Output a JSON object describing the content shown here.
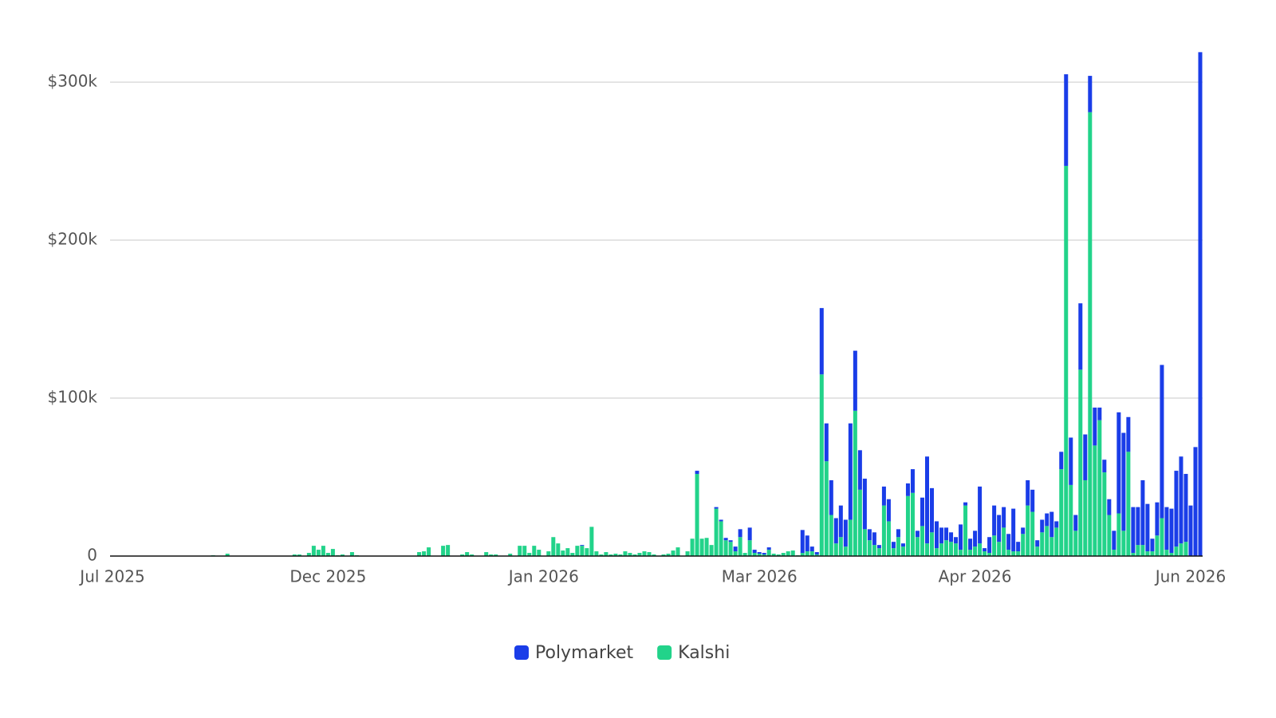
{
  "chart_data": {
    "type": "stacked-bar",
    "categories": [
      "Jul 2025",
      null,
      null,
      null,
      null,
      null,
      null,
      null,
      null,
      null,
      null,
      null,
      null,
      null,
      null,
      null,
      null,
      null,
      null,
      null,
      null,
      null,
      null,
      null,
      null,
      null,
      null,
      null,
      null,
      null,
      null,
      null,
      null,
      null,
      null,
      null,
      null,
      null,
      null,
      null,
      null,
      null,
      null,
      null,
      null,
      "Dec 2025",
      null,
      null,
      null,
      null,
      null,
      null,
      null,
      null,
      null,
      null,
      null,
      null,
      null,
      null,
      null,
      null,
      null,
      null,
      null,
      null,
      null,
      null,
      null,
      null,
      null,
      null,
      null,
      null,
      null,
      null,
      null,
      null,
      null,
      null,
      null,
      null,
      null,
      null,
      null,
      null,
      null,
      null,
      null,
      null,
      "Jan 2026",
      null,
      null,
      null,
      null,
      null,
      null,
      null,
      null,
      null,
      null,
      null,
      null,
      null,
      null,
      null,
      null,
      null,
      null,
      null,
      null,
      null,
      null,
      null,
      null,
      null,
      null,
      null,
      null,
      null,
      null,
      null,
      null,
      null,
      null,
      null,
      null,
      null,
      null,
      null,
      null,
      null,
      null,
      null,
      null,
      "Mar 2026",
      null,
      null,
      null,
      null,
      null,
      null,
      null,
      null,
      null,
      null,
      null,
      null,
      null,
      null,
      null,
      null,
      null,
      null,
      null,
      null,
      null,
      null,
      null,
      null,
      null,
      null,
      null,
      null,
      null,
      null,
      null,
      null,
      null,
      null,
      null,
      null,
      null,
      null,
      null,
      null,
      null,
      null,
      null,
      null,
      "Apr 2026",
      null,
      null,
      null,
      null,
      null,
      null,
      null,
      null,
      null,
      null,
      null,
      null,
      null,
      null,
      null,
      null,
      null,
      null,
      null,
      null,
      null,
      null,
      null,
      null,
      null,
      null,
      null,
      null,
      null,
      null,
      null,
      null,
      null,
      null,
      null,
      null,
      null,
      null,
      null,
      null,
      null,
      null,
      null,
      null,
      "Jun 2026",
      null,
      null
    ],
    "series": [
      {
        "name": "Polymarket",
        "color": "#1a3de8",
        "values": [
          0,
          0,
          0,
          0,
          0,
          0,
          0,
          0,
          0,
          0,
          0,
          0,
          0,
          0,
          0,
          0,
          0,
          0,
          0,
          0,
          0,
          0,
          0,
          0,
          0,
          0,
          0,
          0,
          0,
          0,
          0,
          0,
          0,
          0,
          0,
          0,
          0,
          0,
          0,
          0,
          0,
          0,
          0,
          0,
          0,
          0,
          0,
          0,
          0,
          0,
          0,
          0,
          0,
          0,
          0,
          0,
          0,
          0,
          0,
          0,
          0,
          0,
          0,
          0,
          0,
          0,
          0,
          0,
          0,
          0,
          0,
          0,
          0,
          0,
          0,
          0,
          0,
          0,
          0,
          0,
          0,
          0,
          0,
          0,
          0,
          0,
          0,
          0,
          0,
          0,
          0,
          0,
          0,
          0,
          0,
          0,
          0,
          0,
          500,
          0,
          0,
          0,
          0,
          0,
          0,
          0,
          0,
          0,
          0,
          0,
          0,
          0,
          0,
          0,
          0,
          0,
          0,
          0,
          0,
          0,
          0,
          0,
          2000,
          0,
          0,
          0,
          1000,
          1000,
          1500,
          1000,
          3000,
          5000,
          0,
          8000,
          2000,
          1000,
          1000,
          1500,
          0,
          0,
          0,
          0,
          0,
          0,
          14500,
          10000,
          3000,
          1500,
          42000,
          24000,
          22000,
          16000,
          20000,
          17000,
          61000,
          38000,
          25000,
          32000,
          7000,
          8000,
          2000,
          12000,
          14000,
          4000,
          5000,
          2000,
          8000,
          15000,
          4000,
          18000,
          55000,
          28000,
          17000,
          10000,
          8000,
          6000,
          4000,
          16000,
          2000,
          7000,
          10000,
          36000,
          2000,
          10000,
          19000,
          17000,
          13000,
          10000,
          27000,
          6000,
          4000,
          16000,
          14000,
          4000,
          8000,
          8000,
          16000,
          4000,
          11000,
          58000,
          30000,
          10000,
          42000,
          29000,
          23000,
          24000,
          8000,
          8000,
          10000,
          12000,
          64000,
          62000,
          22000,
          29000,
          24000,
          41000,
          30000,
          8000,
          21000,
          97000,
          27000,
          28000,
          48000,
          55000,
          43000,
          32000,
          69000,
          319000
        ]
      },
      {
        "name": "Kalshi",
        "color": "#22d38a",
        "values": [
          0,
          0,
          0,
          0,
          0,
          0,
          0,
          0,
          0,
          0,
          0,
          0,
          0,
          0,
          0,
          0,
          0,
          0,
          0,
          0,
          0,
          500,
          0,
          0,
          1500,
          0,
          0,
          0,
          0,
          0,
          0,
          0,
          0,
          0,
          0,
          0,
          0,
          0,
          1000,
          1000,
          0,
          2000,
          6500,
          4000,
          6500,
          2000,
          4500,
          500,
          1000,
          0,
          2500,
          500,
          0,
          0,
          0,
          0,
          0,
          0,
          0,
          0,
          0,
          0,
          0,
          0,
          2500,
          3000,
          5500,
          0,
          0,
          6500,
          7000,
          0,
          0,
          1000,
          2500,
          1000,
          0,
          0,
          2500,
          1000,
          1000,
          0,
          0,
          1500,
          0,
          6500,
          6500,
          2000,
          6500,
          4000,
          0,
          3000,
          12000,
          8000,
          3500,
          5000,
          2000,
          6500,
          6500,
          5000,
          18500,
          3000,
          1000,
          2500,
          1000,
          1500,
          1000,
          3000,
          2000,
          1000,
          2000,
          3000,
          2500,
          1000,
          0,
          1000,
          1500,
          3500,
          5500,
          0,
          3000,
          11000,
          52000,
          11000,
          11500,
          7000,
          30000,
          22000,
          10000,
          9000,
          3000,
          12000,
          2000,
          10000,
          2000,
          1500,
          1000,
          4000,
          1500,
          1000,
          2000,
          3000,
          3500,
          500,
          2000,
          3000,
          3000,
          1000,
          115000,
          60000,
          26000,
          8000,
          12000,
          6000,
          23000,
          92000,
          42000,
          17000,
          10000,
          7000,
          5000,
          32000,
          22000,
          5000,
          12000,
          6000,
          38000,
          40000,
          12000,
          19000,
          8000,
          15000,
          5000,
          8000,
          10000,
          9000,
          8000,
          4000,
          32000,
          4000,
          6000,
          8000,
          3000,
          2000,
          13000,
          9000,
          18000,
          4000,
          3000,
          3000,
          14000,
          32000,
          28000,
          6000,
          15000,
          19000,
          12000,
          18000,
          55000,
          247000,
          45000,
          16000,
          118000,
          48000,
          281000,
          70000,
          86000,
          53000,
          26000,
          4000,
          27000,
          16000,
          66000,
          2000,
          7000,
          7000,
          3000,
          3000,
          13000,
          24000,
          4000,
          2000,
          6000,
          8000,
          9000,
          0,
          0,
          0
        ]
      }
    ],
    "ylim": [
      0,
      320000
    ],
    "yticks": [
      0,
      {
        "value": 100000,
        "label": "$100k"
      },
      {
        "value": 200000,
        "label": "$200k"
      },
      {
        "value": 300000,
        "label": "$300k"
      }
    ],
    "grid": true,
    "legend": "bottom"
  }
}
